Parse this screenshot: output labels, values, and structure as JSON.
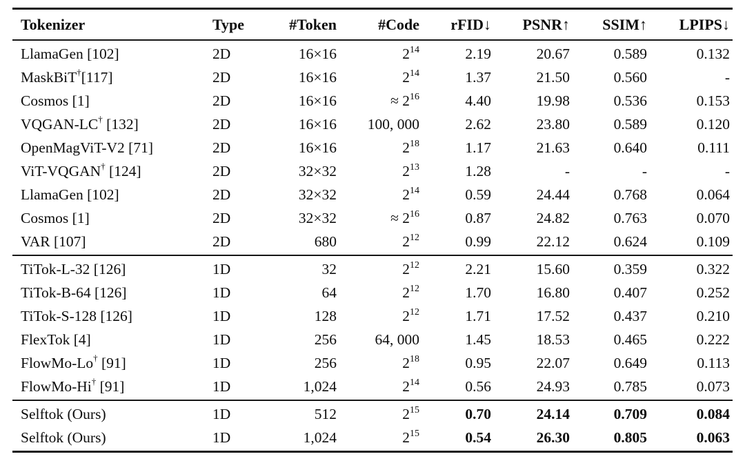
{
  "colors": {
    "background": "#ffffff",
    "text": "#0d0d0d",
    "rule": "#161616"
  },
  "table": {
    "columns": [
      {
        "key": "tokenizer",
        "label": "Tokenizer",
        "align": "left"
      },
      {
        "key": "type",
        "label": "Type",
        "align": "left"
      },
      {
        "key": "token",
        "label": "#Token",
        "align": "right"
      },
      {
        "key": "code",
        "label": "#Code",
        "align": "right"
      },
      {
        "key": "rfid",
        "label": "rFID↓",
        "align": "right"
      },
      {
        "key": "psnr",
        "label": "PSNR↑",
        "align": "right"
      },
      {
        "key": "ssim",
        "label": "SSIM↑",
        "align": "right"
      },
      {
        "key": "lpips",
        "label": "LPIPS↓",
        "align": "right"
      }
    ],
    "notation": {
      "superscript_marker": "^",
      "dagger": "†",
      "approx": "≈"
    },
    "sections": [
      {
        "name": "2d-tokenizers",
        "rows": [
          {
            "cells": [
              "LlamaGen [102]",
              "2D",
              "16×16",
              "2^14",
              "2.19",
              "20.67",
              "0.589",
              "0.132"
            ]
          },
          {
            "cells": [
              "MaskBiT†[117]",
              "2D",
              "16×16",
              "2^14",
              "1.37",
              "21.50",
              "0.560",
              "-"
            ]
          },
          {
            "cells": [
              "Cosmos [1]",
              "2D",
              "16×16",
              "≈ 2^16",
              "4.40",
              "19.98",
              "0.536",
              "0.153"
            ]
          },
          {
            "cells": [
              "VQGAN-LC† [132]",
              "2D",
              "16×16",
              "100, 000",
              "2.62",
              "23.80",
              "0.589",
              "0.120"
            ]
          },
          {
            "cells": [
              "OpenMagViT-V2 [71]",
              "2D",
              "16×16",
              "2^18",
              "1.17",
              "21.63",
              "0.640",
              "0.111"
            ]
          },
          {
            "cells": [
              "ViT-VQGAN† [124]",
              "2D",
              "32×32",
              "2^13",
              "1.28",
              "-",
              "-",
              "-"
            ]
          },
          {
            "cells": [
              "LlamaGen [102]",
              "2D",
              "32×32",
              "2^14",
              "0.59",
              "24.44",
              "0.768",
              "0.064"
            ]
          },
          {
            "cells": [
              "Cosmos [1]",
              "2D",
              "32×32",
              "≈ 2^16",
              "0.87",
              "24.82",
              "0.763",
              "0.070"
            ]
          },
          {
            "cells": [
              "VAR [107]",
              "2D",
              "680",
              "2^12",
              "0.99",
              "22.12",
              "0.624",
              "0.109"
            ]
          }
        ]
      },
      {
        "name": "1d-tokenizers",
        "rows": [
          {
            "cells": [
              "TiTok-L-32 [126]",
              "1D",
              "32",
              "2^12",
              "2.21",
              "15.60",
              "0.359",
              "0.322"
            ]
          },
          {
            "cells": [
              "TiTok-B-64 [126]",
              "1D",
              "64",
              "2^12",
              "1.70",
              "16.80",
              "0.407",
              "0.252"
            ]
          },
          {
            "cells": [
              "TiTok-S-128 [126]",
              "1D",
              "128",
              "2^12",
              "1.71",
              "17.52",
              "0.437",
              "0.210"
            ]
          },
          {
            "cells": [
              "FlexTok [4]",
              "1D",
              "256",
              "64, 000",
              "1.45",
              "18.53",
              "0.465",
              "0.222"
            ]
          },
          {
            "cells": [
              "FlowMo-Lo† [91]",
              "1D",
              "256",
              "2^18",
              "0.95",
              "22.07",
              "0.649",
              "0.113"
            ]
          },
          {
            "cells": [
              "FlowMo-Hi† [91]",
              "1D",
              "1,024",
              "2^14",
              "0.56",
              "24.93",
              "0.785",
              "0.073"
            ]
          }
        ]
      },
      {
        "name": "selftok-ours",
        "rows": [
          {
            "cells": [
              "Selftok (Ours)",
              "1D",
              "512",
              "2^15",
              "0.70",
              "24.14",
              "0.709",
              "0.084"
            ],
            "bold_metrics": true
          },
          {
            "cells": [
              "Selftok (Ours)",
              "1D",
              "1,024",
              "2^15",
              "0.54",
              "26.30",
              "0.805",
              "0.063"
            ],
            "bold_metrics": true
          }
        ]
      }
    ]
  }
}
